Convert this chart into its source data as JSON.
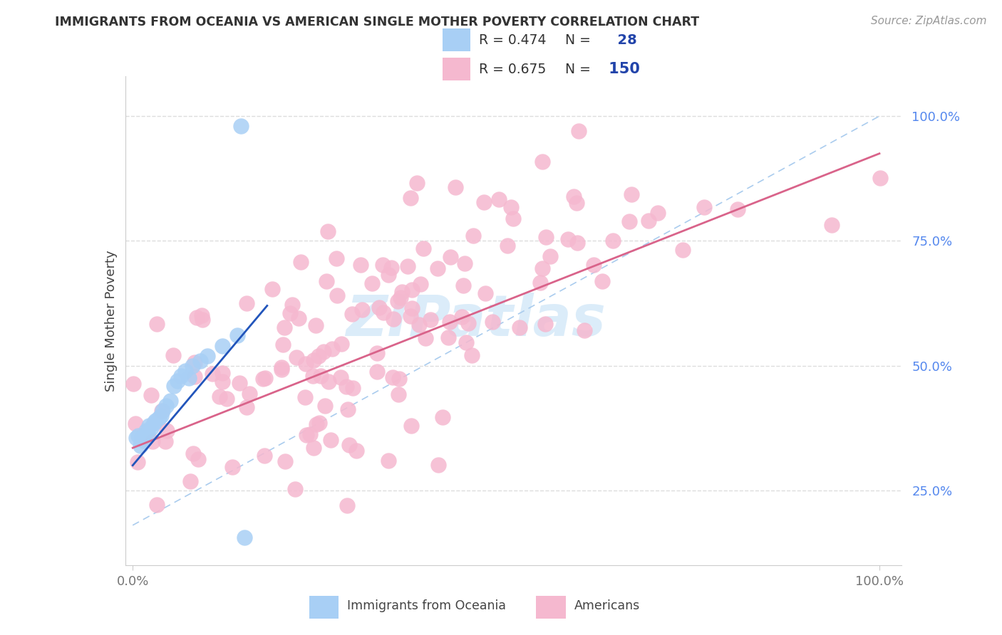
{
  "title": "IMMIGRANTS FROM OCEANIA VS AMERICAN SINGLE MOTHER POVERTY CORRELATION CHART",
  "source": "Source: ZipAtlas.com",
  "ylabel": "Single Mother Poverty",
  "right_ytick_vals": [
    1.0,
    0.75,
    0.5,
    0.25
  ],
  "right_ytick_labels": [
    "100.0%",
    "75.0%",
    "50.0%",
    "25.0%"
  ],
  "legend_blue_r": "0.474",
  "legend_blue_n": "28",
  "legend_pink_r": "0.675",
  "legend_pink_n": "150",
  "blue_color": "#a8cff5",
  "pink_color": "#f5b8cf",
  "blue_line_color": "#2255bb",
  "pink_line_color": "#d9638a",
  "diag_color": "#aaccee",
  "watermark_color": "#cde5f7",
  "ytick_color": "#5588ee",
  "xtick_color": "#777777",
  "ylabel_color": "#444444",
  "title_color": "#333333",
  "source_color": "#999999",
  "grid_color": "#dddddd",
  "legend_text_color": "#333333",
  "legend_n_color": "#2244aa"
}
